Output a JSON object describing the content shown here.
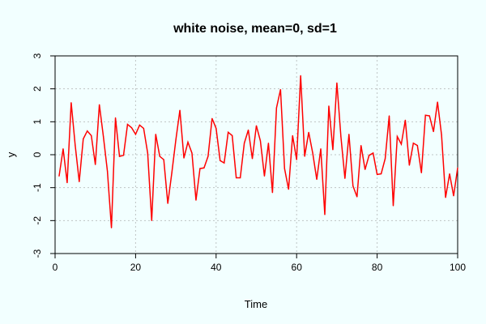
{
  "chart_data": {
    "type": "line",
    "title": "white noise, mean=0, sd=1",
    "xlabel": "Time",
    "ylabel": "y",
    "xlim": [
      0,
      100
    ],
    "ylim": [
      -3,
      3
    ],
    "x_ticks": [
      "0",
      "20",
      "40",
      "60",
      "80",
      "100"
    ],
    "y_ticks": [
      "-3",
      "-2",
      "-1",
      "0",
      "1",
      "2",
      "3"
    ],
    "grid": true,
    "series": [
      {
        "color": "#ff0000",
        "x": [
          1,
          2,
          3,
          4,
          5,
          6,
          7,
          8,
          9,
          10,
          11,
          12,
          13,
          14,
          15,
          16,
          17,
          18,
          19,
          20,
          21,
          22,
          23,
          24,
          25,
          26,
          27,
          28,
          29,
          30,
          31,
          32,
          33,
          34,
          35,
          36,
          37,
          38,
          39,
          40,
          41,
          42,
          43,
          44,
          45,
          46,
          47,
          48,
          49,
          50,
          51,
          52,
          53,
          54,
          55,
          56,
          57,
          58,
          59,
          60,
          61,
          62,
          63,
          64,
          65,
          66,
          67,
          68,
          69,
          70,
          71,
          72,
          73,
          74,
          75,
          76,
          77,
          78,
          79,
          80,
          81,
          82,
          83,
          84,
          85,
          86,
          87,
          88,
          89,
          90,
          91,
          92,
          93,
          94,
          95,
          96,
          97,
          98,
          99,
          100
        ],
        "values": [
          -0.65,
          0.18,
          -0.85,
          1.58,
          0.28,
          -0.82,
          0.48,
          0.72,
          0.58,
          -0.3,
          1.52,
          0.55,
          -0.5,
          -2.22,
          1.12,
          -0.05,
          -0.02,
          0.92,
          0.82,
          0.62,
          0.9,
          0.8,
          0.05,
          -2.0,
          0.62,
          -0.05,
          -0.15,
          -1.48,
          -0.55,
          0.45,
          1.35,
          -0.1,
          0.38,
          0.05,
          -1.38,
          -0.42,
          -0.4,
          -0.05,
          1.1,
          0.8,
          -0.18,
          -0.25,
          0.68,
          0.58,
          -0.7,
          -0.7,
          0.35,
          0.75,
          -0.12,
          0.88,
          0.42,
          -0.65,
          0.35,
          -1.15,
          1.42,
          1.98,
          -0.42,
          -1.05,
          0.58,
          -0.15,
          2.4,
          -0.05,
          0.68,
          0.05,
          -0.75,
          0.18,
          -1.82,
          1.48,
          0.15,
          2.18,
          0.55,
          -0.72,
          0.62,
          -0.95,
          -1.28,
          0.28,
          -0.45,
          -0.02,
          0.05,
          -0.6,
          -0.58,
          -0.12,
          1.18,
          -1.55,
          0.55,
          0.32,
          1.05,
          -0.32,
          0.35,
          0.28,
          -0.55,
          1.2,
          1.18,
          0.7,
          1.6,
          0.6,
          -1.3,
          -0.58,
          -1.25,
          -0.4
        ]
      }
    ]
  }
}
